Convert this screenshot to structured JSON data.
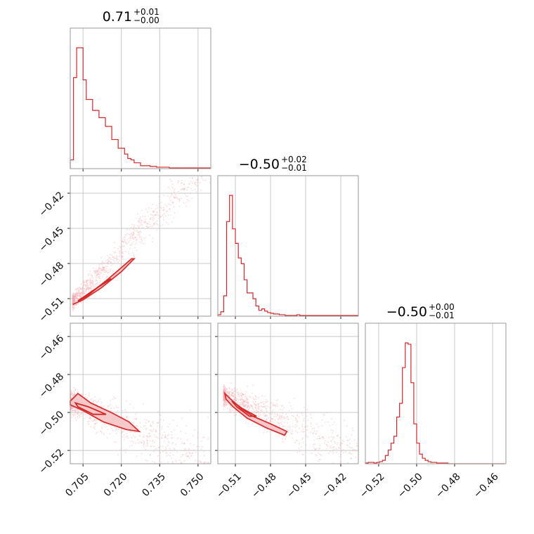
{
  "chart_data": {
    "type": "corner",
    "colors": {
      "main": "#d62728",
      "points": "#f4a7ab",
      "fill": "#f6c7c9",
      "grid": "#c8c8c8"
    },
    "params": [
      {
        "title": {
          "value": "0.71",
          "plus": "+0.01",
          "minus": "−0.00"
        },
        "range": [
          0.7,
          0.755
        ],
        "ticks": [
          0.705,
          0.72,
          0.735,
          0.75
        ],
        "tick_labels": [
          "0.705",
          "0.720",
          "0.735",
          "0.750"
        ],
        "hist": {
          "edges_start": 0.7,
          "edges_step": 0.00125,
          "counts": [
            12,
            125,
            166,
            166,
            122,
            95,
            95,
            80,
            80,
            70,
            70,
            58,
            58,
            40,
            40,
            28,
            28,
            20,
            14,
            12,
            8,
            8,
            4,
            4,
            4,
            3,
            3,
            2,
            2,
            2,
            2,
            1,
            1,
            1,
            1,
            1,
            1,
            1,
            1,
            1,
            1,
            1,
            1,
            1
          ]
        }
      },
      {
        "title": {
          "value": "−0.50",
          "plus": "+0.02",
          "minus": "−0.01"
        },
        "range": [
          -0.525,
          -0.405
        ],
        "ticks": [
          -0.51,
          -0.48,
          -0.45,
          -0.42
        ],
        "tick_labels": [
          "−0.51",
          "−0.48",
          "−0.45",
          "−0.42"
        ],
        "hist": {
          "edges_start": -0.525,
          "edges_step": 0.0025,
          "counts": [
            2,
            6,
            28,
            130,
            166,
            120,
            100,
            80,
            72,
            50,
            32,
            32,
            24,
            14,
            8,
            10,
            7,
            5,
            4,
            3,
            3,
            2,
            2,
            1,
            1,
            1,
            1,
            2,
            1,
            1,
            1,
            1,
            1,
            1,
            1,
            1,
            1,
            1,
            1,
            1,
            1,
            1,
            1,
            1,
            1,
            1,
            1,
            1
          ]
        }
      },
      {
        "title": {
          "value": "−0.50",
          "plus": "+0.00",
          "minus": "−0.01"
        },
        "range": [
          -0.527,
          -0.453
        ],
        "ticks": [
          -0.52,
          -0.5,
          -0.48,
          -0.46
        ],
        "tick_labels": [
          "−0.52",
          "−0.50",
          "−0.48",
          "−0.46"
        ],
        "hist": {
          "edges_start": -0.527,
          "edges_step": 0.0015,
          "counts": [
            1,
            2,
            2,
            1,
            2,
            3,
            5,
            12,
            20,
            30,
            40,
            68,
            88,
            140,
            176,
            174,
            118,
            58,
            30,
            14,
            8,
            5,
            3,
            2,
            2,
            1,
            1,
            1,
            1,
            0,
            0,
            0,
            0,
            0,
            0,
            0,
            0,
            0,
            0,
            0,
            0,
            0,
            0,
            0,
            0,
            0,
            0,
            0,
            0
          ]
        }
      }
    ],
    "pairs": [
      {
        "x_param": 0,
        "y_param": 1,
        "trend": {
          "x0": 0.701,
          "y0": -0.512,
          "slope": 2.25
        },
        "scatter_spread": {
          "x": [
            0.701,
            0.755
          ],
          "y_sd": 0.008
        },
        "contours": [
          [
            [
              0.701,
              -0.515
            ],
            [
              0.705,
              -0.511
            ],
            [
              0.712,
              -0.501
            ],
            [
              0.72,
              -0.487
            ],
            [
              0.725,
              -0.476
            ],
            [
              0.724,
              -0.476
            ],
            [
              0.715,
              -0.493
            ],
            [
              0.707,
              -0.507
            ],
            [
              0.703,
              -0.513
            ]
          ],
          [
            [
              0.703,
              -0.512
            ],
            [
              0.709,
              -0.503
            ],
            [
              0.716,
              -0.493
            ],
            [
              0.714,
              -0.495
            ],
            [
              0.706,
              -0.508
            ]
          ]
        ]
      },
      {
        "x_param": 0,
        "y_param": 2,
        "trend": {
          "x0": 0.7,
          "y0": -0.494,
          "slope": -0.6
        },
        "scatter_spread": {
          "x": [
            0.7,
            0.755
          ],
          "y_sd": 0.007
        },
        "contours": [
          [
            [
              0.7,
              -0.494
            ],
            [
              0.703,
              -0.49
            ],
            [
              0.708,
              -0.495
            ],
            [
              0.716,
              -0.5
            ],
            [
              0.723,
              -0.505
            ],
            [
              0.727,
              -0.51
            ],
            [
              0.722,
              -0.509
            ],
            [
              0.713,
              -0.505
            ],
            [
              0.705,
              -0.499
            ],
            [
              0.7,
              -0.496
            ]
          ],
          [
            [
              0.702,
              -0.495
            ],
            [
              0.707,
              -0.497
            ],
            [
              0.714,
              -0.501
            ],
            [
              0.709,
              -0.501
            ],
            [
              0.703,
              -0.497
            ]
          ]
        ]
      },
      {
        "x_param": 1,
        "y_param": 2,
        "trend": {
          "x0": -0.52,
          "y0": -0.491,
          "slope": -0.27
        },
        "scatter_spread": {
          "x": [
            -0.52,
            -0.405
          ],
          "y_sd": 0.006
        },
        "contours": [
          [
            [
              -0.519,
              -0.49
            ],
            [
              -0.514,
              -0.493
            ],
            [
              -0.505,
              -0.498
            ],
            [
              -0.495,
              -0.502
            ],
            [
              -0.48,
              -0.506
            ],
            [
              -0.466,
              -0.51
            ],
            [
              -0.468,
              -0.512
            ],
            [
              -0.484,
              -0.508
            ],
            [
              -0.5,
              -0.503
            ],
            [
              -0.512,
              -0.497
            ],
            [
              -0.518,
              -0.493
            ]
          ],
          [
            [
              -0.513,
              -0.494
            ],
            [
              -0.504,
              -0.498
            ],
            [
              -0.492,
              -0.502
            ],
            [
              -0.498,
              -0.502
            ],
            [
              -0.509,
              -0.497
            ]
          ]
        ]
      }
    ]
  }
}
